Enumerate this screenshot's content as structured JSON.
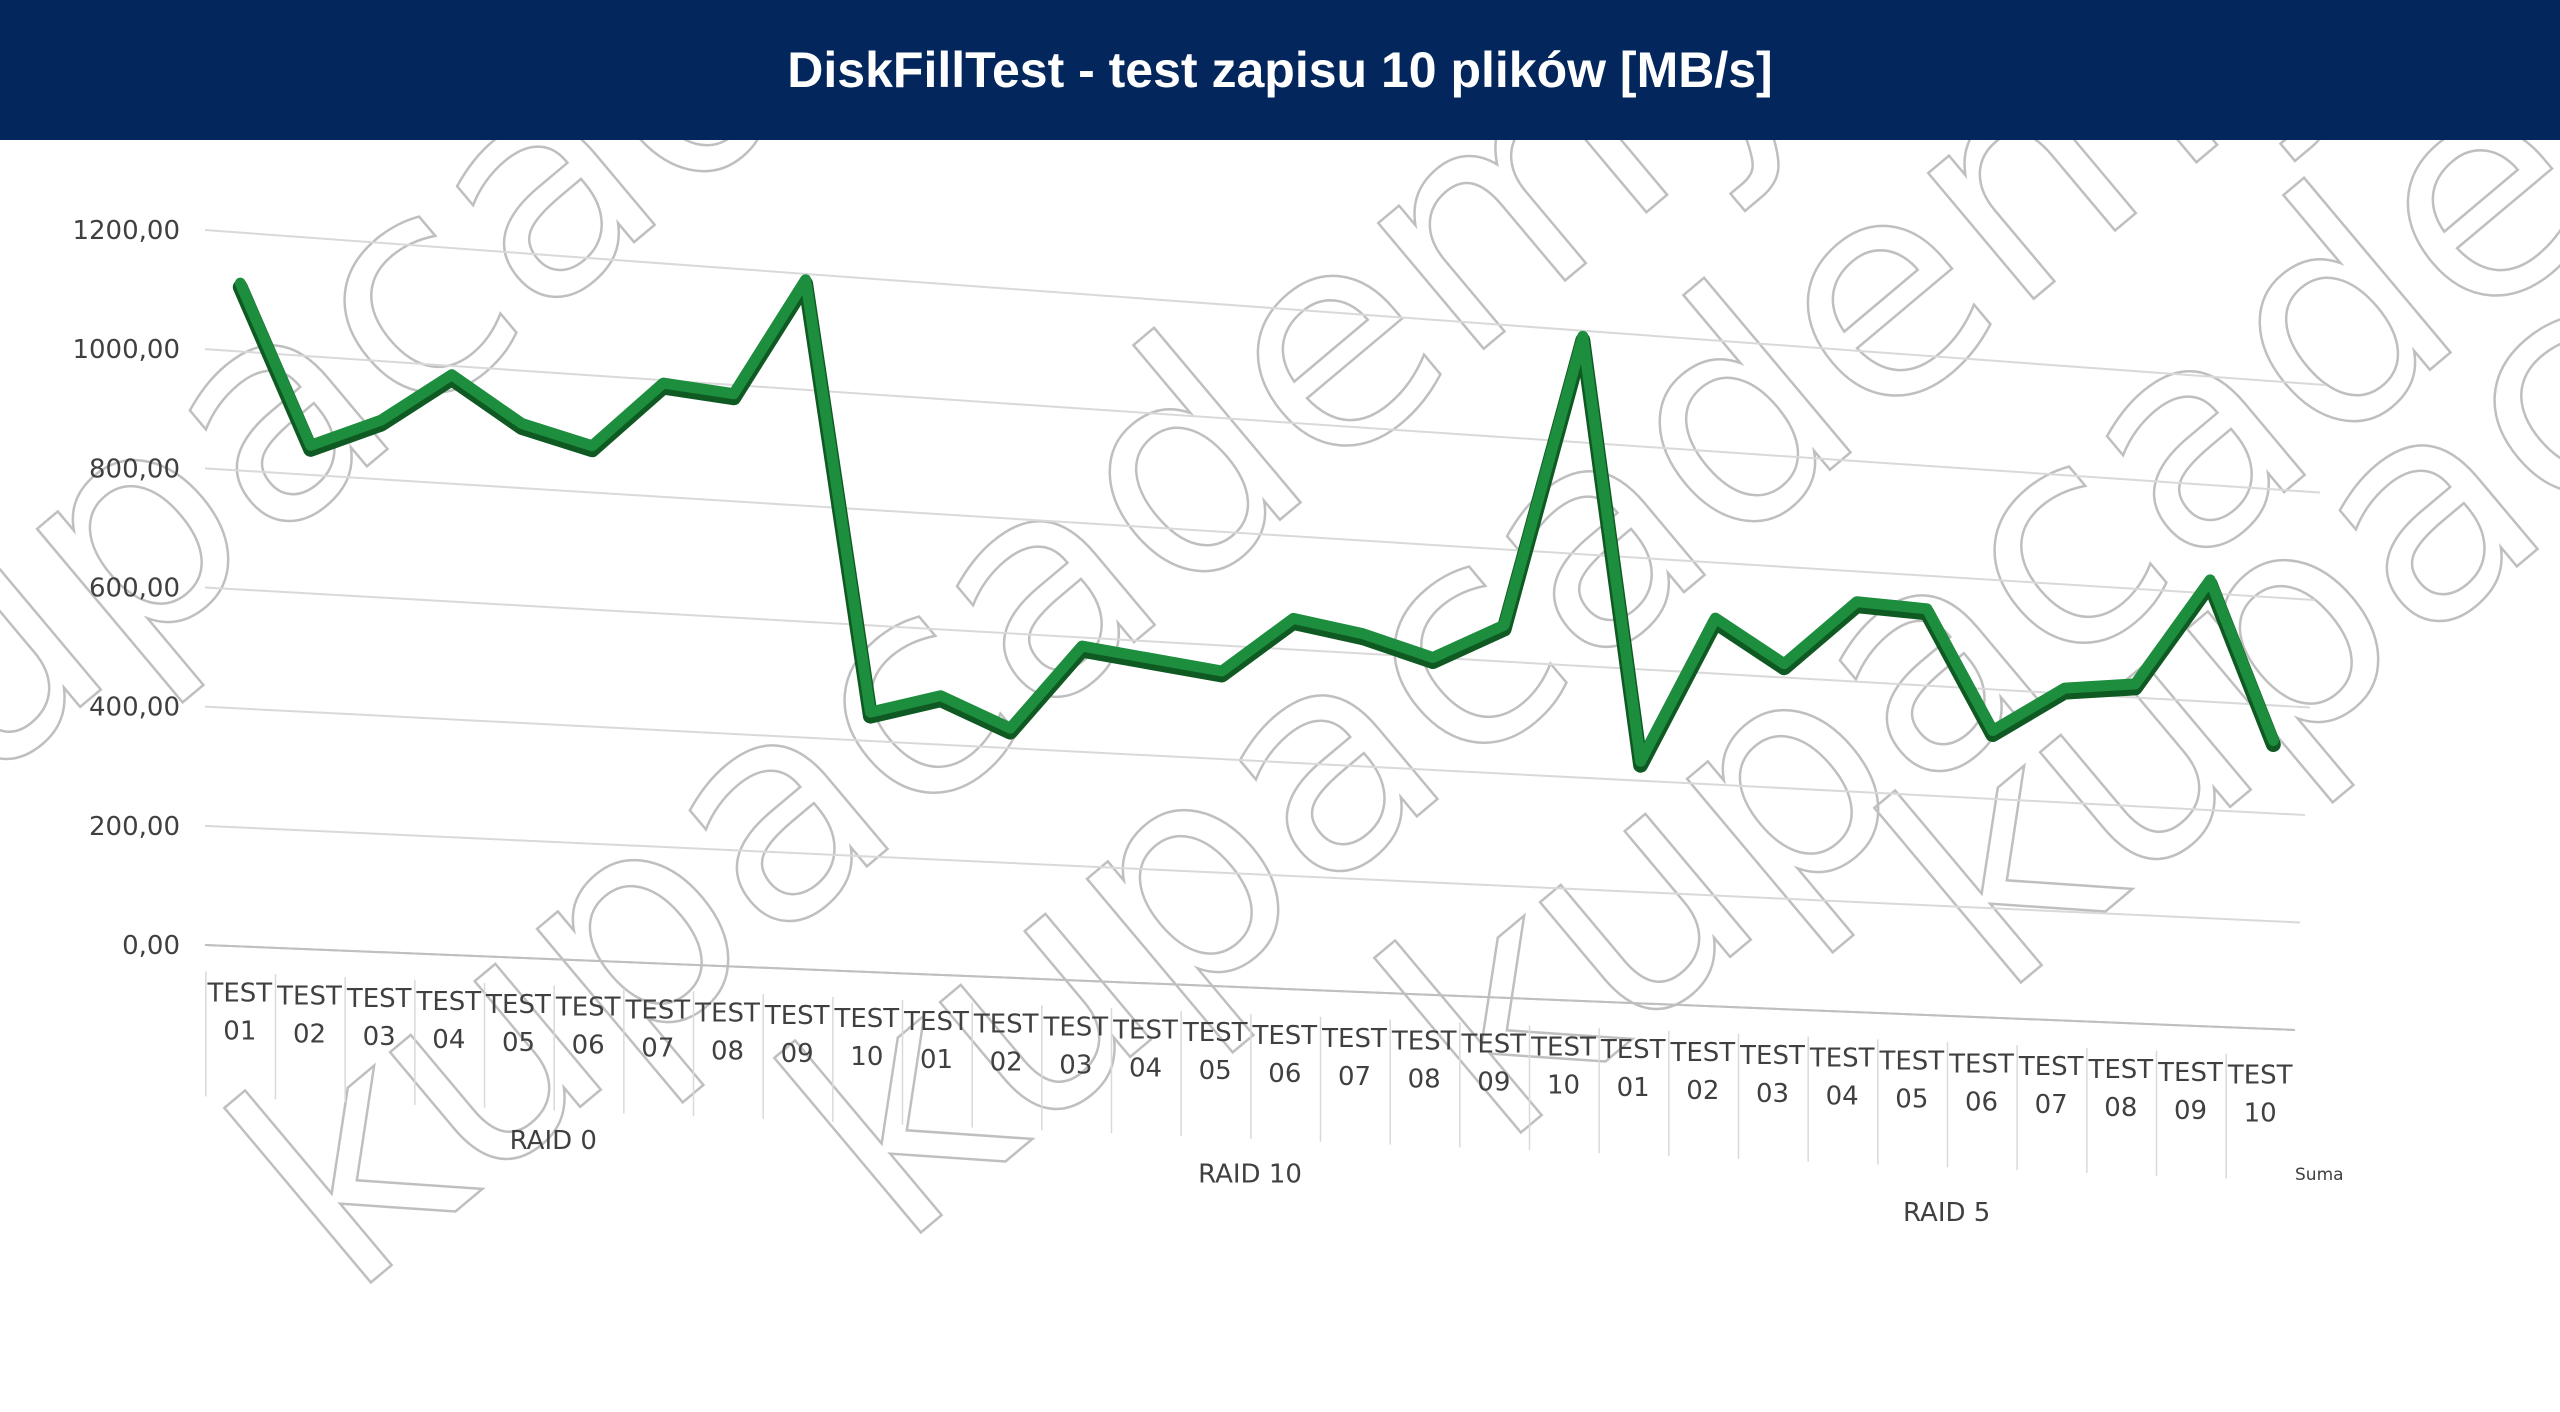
{
  "header": {
    "title": "DiskFillTest - test zapisu 10 plików [MB/s]"
  },
  "colors": {
    "header_bg": "#03275c",
    "line": "#1d8d3e",
    "line_dark": "#0f5a22",
    "gridline": "#d9d9d9",
    "axis_line": "#bfbfbf",
    "text": "#404040",
    "watermark": "#bfbfbf"
  },
  "watermark": {
    "text": "kupacademy.pl"
  },
  "chart_data": {
    "type": "line",
    "title": "DiskFillTest - test zapisu 10 plików [MB/s]",
    "perspective": "3d",
    "ylim": [
      0,
      1200
    ],
    "y_ticks": [
      "0,00",
      "200,00",
      "400,00",
      "600,00",
      "800,00",
      "1000,00",
      "1200,00"
    ],
    "grid": true,
    "legend": "none",
    "xlabel": "Suma",
    "groups": [
      {
        "name": "RAID 0",
        "categories": [
          "TEST 01",
          "TEST 02",
          "TEST 03",
          "TEST 04",
          "TEST 05",
          "TEST 06",
          "TEST 07",
          "TEST 08",
          "TEST 09",
          "TEST 10"
        ]
      },
      {
        "name": "RAID 10",
        "categories": [
          "TEST 01",
          "TEST 02",
          "TEST 03",
          "TEST 04",
          "TEST 05",
          "TEST 06",
          "TEST 07",
          "TEST 08",
          "TEST 09",
          "TEST 10"
        ]
      },
      {
        "name": "RAID 5",
        "categories": [
          "TEST 01",
          "TEST 02",
          "TEST 03",
          "TEST 04",
          "TEST 05",
          "TEST 06",
          "TEST 07",
          "TEST 08",
          "TEST 09",
          "TEST 10"
        ]
      }
    ],
    "values": [
      1115,
      850,
      900,
      985,
      910,
      880,
      995,
      985,
      1190,
      450,
      485,
      435,
      585,
      570,
      555,
      655,
      635,
      600,
      665,
      1190,
      435,
      700,
      625,
      745,
      740,
      525,
      610,
      625,
      825,
      535
    ]
  }
}
